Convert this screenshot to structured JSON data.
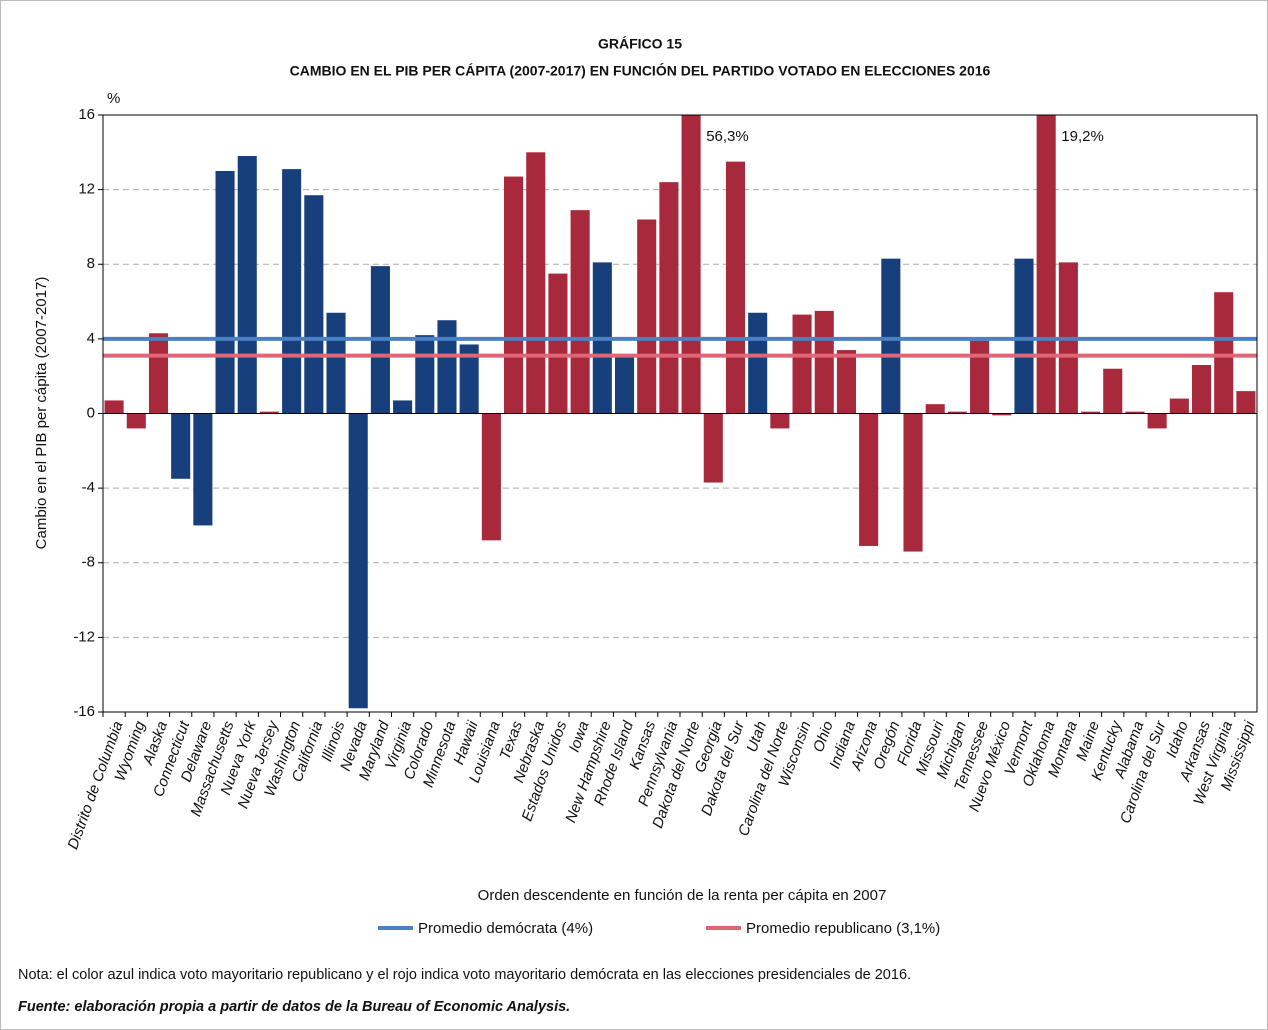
{
  "chart_data": {
    "type": "bar",
    "title": "GRÁFICO 15",
    "subtitle": "CAMBIO EN EL PIB PER CÁPITA (2007-2017) EN FUNCIÓN DEL PARTIDO VOTADO EN ELECCIONES 2016",
    "y_unit": "%",
    "ylabel": "Cambio en el PIB per cápita (2007-2017)",
    "xlabel": "Orden descendente en función de la renta per cápita en 2007",
    "categories": [
      "Distrito de Columbia",
      "Wyoming",
      "Alaska",
      "Connecticut",
      "Delaware",
      "Massachusetts",
      "Nueva York",
      "Nueva Jersey",
      "Washington",
      "California",
      "Illinois",
      "Nevada",
      "Maryland",
      "Virginia",
      "Colorado",
      "Minnesota",
      "Hawaii",
      "Louisiana",
      "Texas",
      "Nebraska",
      "Estados Unidos",
      "Iowa",
      "New Hampshire",
      "Rhode Island",
      "Kansas",
      "Pennsylvania",
      "Dakota del Norte",
      "Georgia",
      "Dakota del Sur",
      "Utah",
      "Carolina del Norte",
      "Wisconsin",
      "Ohio",
      "Indiana",
      "Arizona",
      "Oregón",
      "Florida",
      "Missouri",
      "Michigan",
      "Tennessee",
      "Nuevo México",
      "Vermont",
      "Oklahoma",
      "Montana",
      "Maine",
      "Kentucky",
      "Alabama",
      "Carolina del Sur",
      "Idaho",
      "Arkansas",
      "West Virginia",
      "Mississippi"
    ],
    "values": [
      0.7,
      -0.8,
      4.3,
      -3.5,
      -6.0,
      13.0,
      13.8,
      0.1,
      13.1,
      11.7,
      5.4,
      -15.8,
      7.9,
      0.7,
      4.2,
      5.0,
      3.7,
      -6.8,
      12.7,
      14.0,
      7.5,
      10.9,
      8.1,
      3.1,
      10.4,
      12.4,
      56.3,
      -3.7,
      13.5,
      5.4,
      -0.8,
      5.3,
      5.5,
      3.4,
      -7.1,
      8.3,
      -7.4,
      0.5,
      0.1,
      3.9,
      -0.1,
      8.3,
      19.2,
      8.1,
      0.1,
      2.4,
      0.1,
      -0.8,
      0.8,
      2.6,
      6.5,
      1.2
    ],
    "value_labels": [
      null,
      null,
      null,
      null,
      null,
      null,
      null,
      null,
      null,
      null,
      null,
      null,
      null,
      null,
      null,
      null,
      null,
      null,
      null,
      null,
      null,
      null,
      null,
      null,
      null,
      null,
      "56,3%",
      null,
      null,
      null,
      null,
      null,
      null,
      null,
      null,
      null,
      null,
      null,
      null,
      null,
      null,
      null,
      "19,2%",
      null,
      null,
      null,
      null,
      null,
      null,
      null,
      null,
      null
    ],
    "colors": [
      "#a8283c",
      "#a8283c",
      "#a8283c",
      "#173f7c",
      "#173f7c",
      "#173f7c",
      "#173f7c",
      "#a8283c",
      "#173f7c",
      "#173f7c",
      "#173f7c",
      "#173f7c",
      "#173f7c",
      "#173f7c",
      "#173f7c",
      "#173f7c",
      "#173f7c",
      "#a8283c",
      "#a8283c",
      "#a8283c",
      "#a8283c",
      "#a8283c",
      "#173f7c",
      "#173f7c",
      "#a8283c",
      "#a8283c",
      "#a8283c",
      "#a8283c",
      "#a8283c",
      "#173f7c",
      "#a8283c",
      "#a8283c",
      "#a8283c",
      "#a8283c",
      "#a8283c",
      "#173f7c",
      "#a8283c",
      "#a8283c",
      "#a8283c",
      "#a8283c",
      "#a8283c",
      "#173f7c",
      "#a8283c",
      "#a8283c",
      "#a8283c",
      "#a8283c",
      "#a8283c",
      "#a8283c",
      "#a8283c",
      "#a8283c",
      "#a8283c",
      "#a8283c"
    ],
    "reference_lines": [
      {
        "name": "Promedio demócrata (4%)",
        "value": 4,
        "color": "#4a80c4"
      },
      {
        "name": "Promedio republicano (3,1%)",
        "value": 3.1,
        "color": "#e06575"
      }
    ],
    "ylim": [
      -16,
      16
    ],
    "yticks": [
      -16,
      -12,
      -8,
      -4,
      0,
      4,
      8,
      12,
      16
    ],
    "grid": true,
    "note": "Nota: el color azul indica voto mayoritario republicano y el rojo indica voto mayoritario demócrata en las elecciones presidenciales de 2016.",
    "source": "Fuente: elaboración propia a partir de datos de la Bureau of Economic Analysis."
  }
}
